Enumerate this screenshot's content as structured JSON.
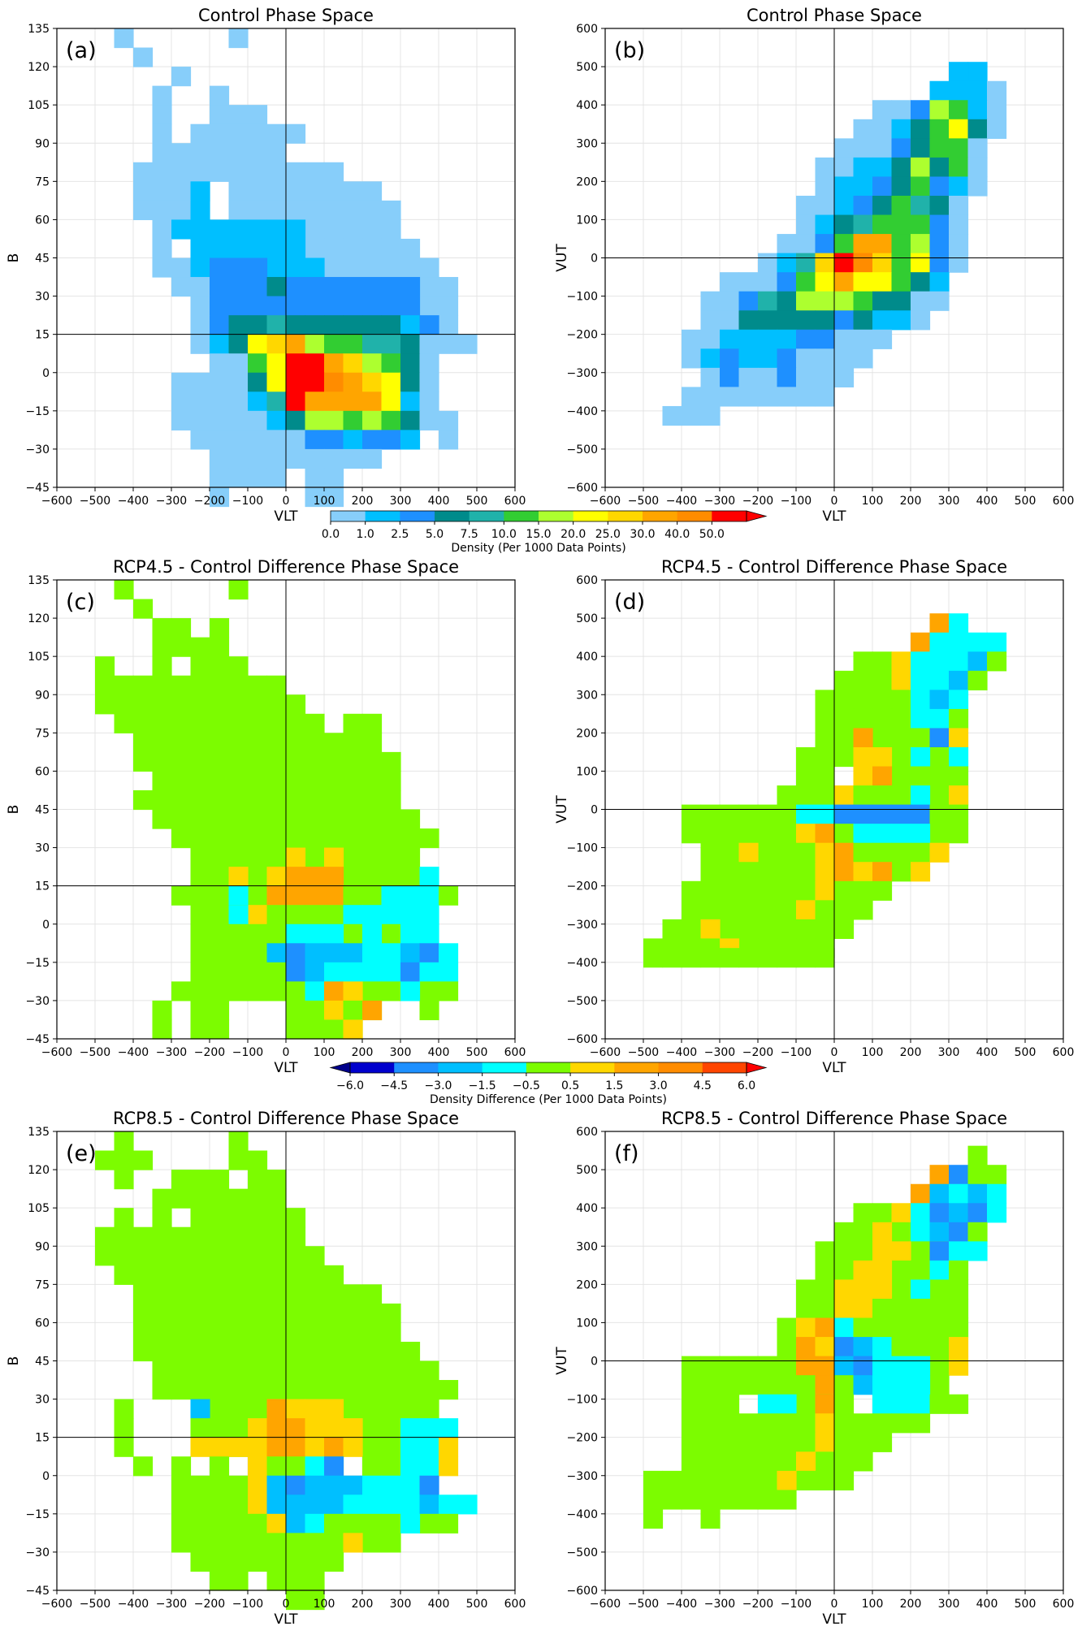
{
  "colorbars": {
    "density": {
      "levels": [
        "0.0",
        "1.0",
        "2.5",
        "5.0",
        "7.5",
        "10.0",
        "15.0",
        "20.0",
        "25.0",
        "30.0",
        "40.0",
        "50.0"
      ],
      "colors": [
        "#87cefa",
        "#00bfff",
        "#1e90ff",
        "#008b8b",
        "#20b2aa",
        "#32cd32",
        "#adff2f",
        "#ffff00",
        "#ffd700",
        "#ffa500",
        "#ff8c00",
        "#ff0000"
      ],
      "label": "Density (Per 1000 Data Points)",
      "extend": "max"
    },
    "difference": {
      "levels": [
        "-6.0",
        "-4.5",
        "-3.0",
        "-1.5",
        "-0.5",
        "0.5",
        "1.5",
        "3.0",
        "4.5",
        "6.0"
      ],
      "colors": [
        "#0000cd",
        "#1e90ff",
        "#00bfff",
        "#00ffff",
        "#7cfc00",
        "#ffd700",
        "#ffa500",
        "#ff8c00",
        "#ff4500"
      ],
      "under_color": "#00008b",
      "over_color": "#ff0000",
      "label": "Density Difference (Per 1000 Data Points)",
      "extend": "both"
    }
  },
  "chart_data": [
    {
      "panel": "(a)",
      "type": "heatmap",
      "title": "Control Phase Space",
      "xlabel": "VLT",
      "ylabel": "B",
      "xlim": [
        -600,
        600
      ],
      "ylim": [
        -45,
        135
      ],
      "xticks": [
        -600,
        -500,
        -400,
        -300,
        -200,
        -100,
        0,
        100,
        200,
        300,
        400,
        500,
        600
      ],
      "yticks": [
        -45,
        -30,
        -15,
        0,
        15,
        30,
        45,
        60,
        75,
        90,
        105,
        120,
        135
      ],
      "cell": {
        "dx": 50,
        "dy": 7.5,
        "x0": -450,
        "y0": -37.5
      },
      "colorbar": "density",
      "grid_rows": [
        "",
        "....0..................",
        ".............",
        "......00000000.........",
        "......00000000000.......",
        "......00000000000000000",
        "......00012134455343..",
        "......0143111113423....",
        "......0133232124334....",
        "......0011243213444.....",
        "......0010000011000.....",
        "......00000000000....",
        "......000000000000",
        ".....000000000000000",
        "......00000000000000",
        "......00000000000000",
        "......00000000000000",
        "......0000000000000",
        ".......000000000000",
        ".......0000000000",
        "........00000...",
        ".........00",
        "..........0",
        ".........0",
        ""
      ],
      "color_rows": []
    }
  ]
}
